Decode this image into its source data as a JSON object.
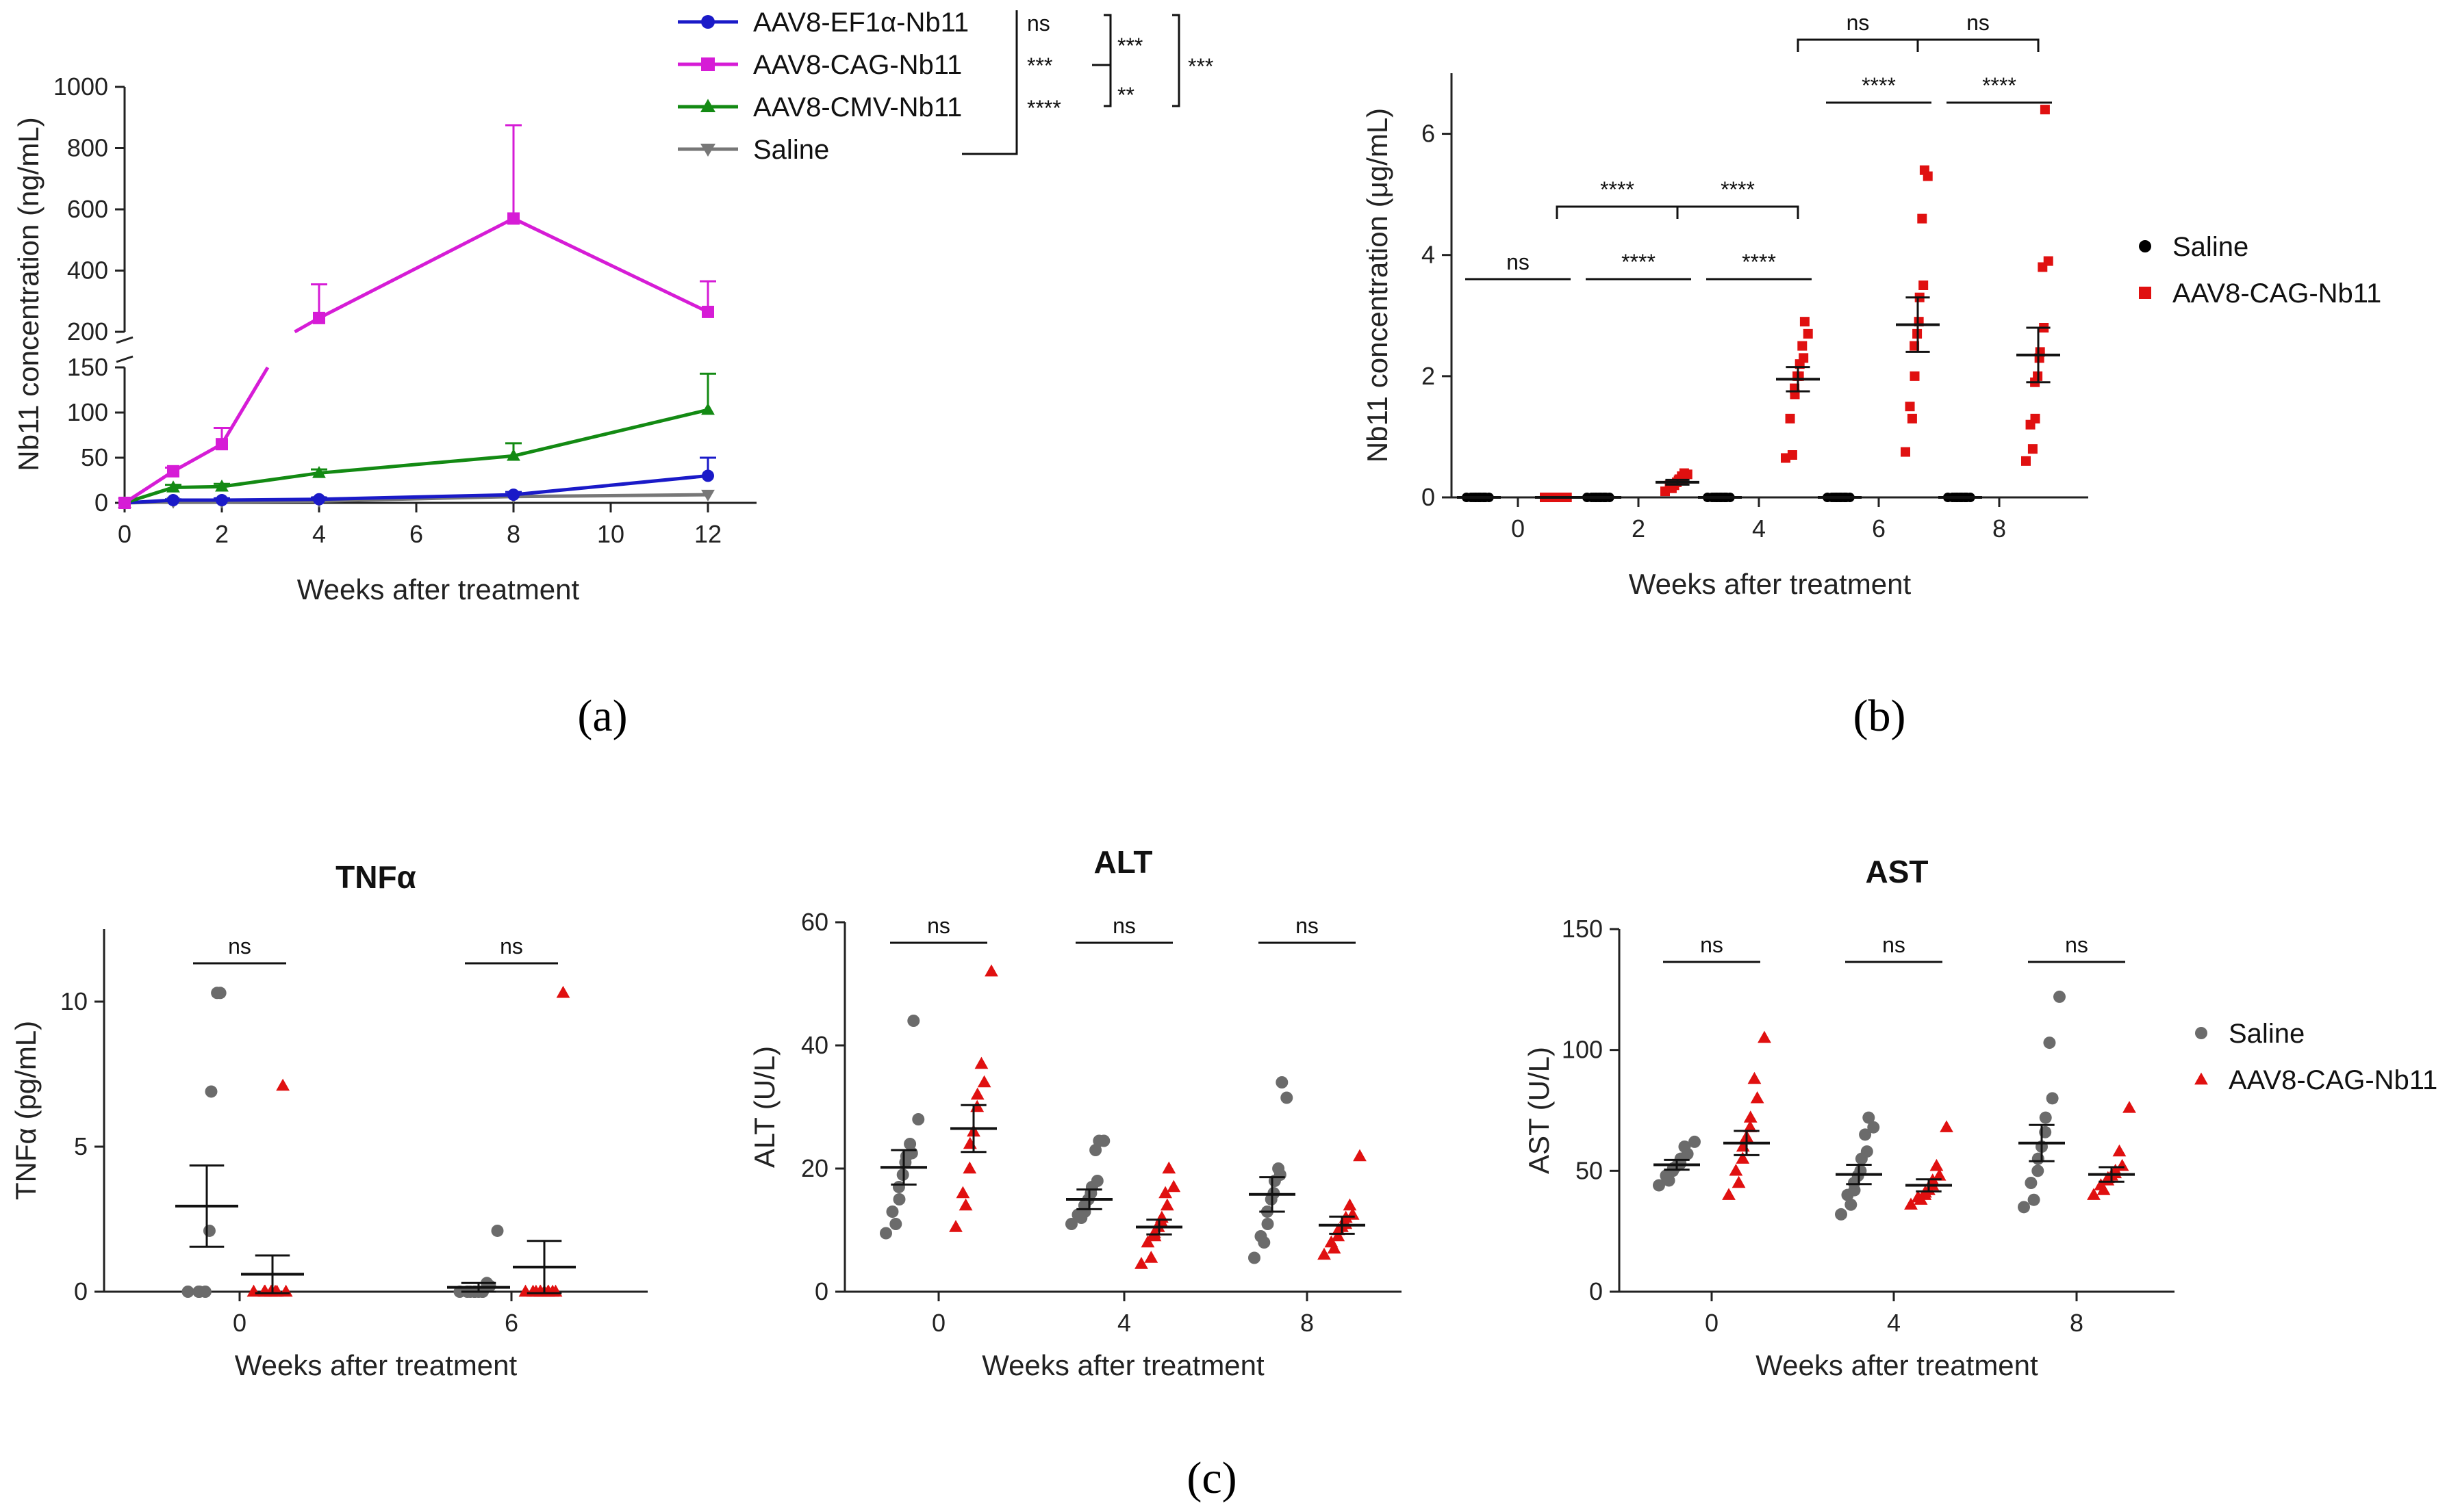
{
  "chart_data": [
    {
      "id": "a",
      "type": "line",
      "panel_label": "(a)",
      "xlabel": "Weeks after treatment",
      "ylabel": "Nb11 concentration (ng/mL)",
      "x_ticks": [
        0,
        2,
        4,
        6,
        8,
        10,
        12
      ],
      "y_ticks_upper": [
        200,
        400,
        600,
        800,
        1000
      ],
      "y_ticks_lower": [
        0,
        50,
        100,
        150
      ],
      "ylim_lower": [
        0,
        150
      ],
      "ylim_upper": [
        200,
        1000
      ],
      "series": [
        {
          "name": "AAV8-EF1α-Nb11",
          "color": "#1a1ac8",
          "marker": "circle",
          "x": [
            0,
            1,
            2,
            4,
            8,
            12
          ],
          "values": [
            0,
            3,
            3,
            4,
            9,
            30
          ],
          "error": [
            0,
            1,
            2,
            2,
            3,
            20
          ]
        },
        {
          "name": "AAV8-CAG-Nb11",
          "color": "#d61cd6",
          "marker": "square",
          "x": [
            0,
            1,
            2,
            4,
            8,
            12
          ],
          "values": [
            0,
            35,
            65,
            245,
            570,
            265
          ],
          "error": [
            0,
            4,
            18,
            110,
            305,
            100
          ]
        },
        {
          "name": "AAV8-CMV-Nb11",
          "color": "#138a13",
          "marker": "triangle",
          "x": [
            0,
            1,
            2,
            4,
            8,
            12
          ],
          "values": [
            0,
            17,
            18,
            33,
            52,
            103
          ],
          "error": [
            0,
            3,
            3,
            4,
            14,
            40
          ]
        },
        {
          "name": "Saline",
          "color": "#777777",
          "marker": "triangle-down",
          "x": [
            0,
            1,
            2,
            4,
            8,
            12
          ],
          "values": [
            0,
            1,
            1,
            2,
            7,
            9
          ],
          "error": [
            0,
            0,
            0,
            0,
            0,
            0
          ]
        }
      ],
      "significance": {
        "vs_saline": [
          "ns",
          "***",
          "****"
        ],
        "pairwise": [
          "***",
          "**",
          "***"
        ]
      }
    },
    {
      "id": "b",
      "type": "scatter",
      "panel_label": "(b)",
      "xlabel": "Weeks after treatment",
      "ylabel": "Nb11 concentration (μg/mL)",
      "x_ticks": [
        0,
        2,
        4,
        6,
        8
      ],
      "y_ticks": [
        0,
        2,
        4,
        6
      ],
      "ylim": [
        0,
        7
      ],
      "legend": [
        {
          "name": "Saline",
          "color": "#000000",
          "marker": "circle"
        },
        {
          "name": "AAV8-CAG-Nb11",
          "color": "#e01010",
          "marker": "square"
        }
      ],
      "groups": [
        {
          "week": 0,
          "series": "Saline",
          "points": [
            0,
            0,
            0,
            0,
            0,
            0,
            0,
            0,
            0,
            0,
            0,
            0
          ],
          "mean": 0,
          "sem": 0
        },
        {
          "week": 0,
          "series": "AAV8-CAG-Nb11",
          "points": [
            0,
            0,
            0,
            0,
            0,
            0,
            0,
            0,
            0,
            0,
            0,
            0
          ],
          "mean": 0,
          "sem": 0
        },
        {
          "week": 2,
          "series": "Saline",
          "points": [
            0,
            0,
            0,
            0,
            0,
            0,
            0,
            0,
            0,
            0,
            0,
            0
          ],
          "mean": 0,
          "sem": 0
        },
        {
          "week": 2,
          "series": "AAV8-CAG-Nb11",
          "points": [
            0.1,
            0.15,
            0.2,
            0.2,
            0.22,
            0.25,
            0.28,
            0.3,
            0.3,
            0.35,
            0.38,
            0.4
          ],
          "mean": 0.25,
          "sem": 0.04
        },
        {
          "week": 4,
          "series": "Saline",
          "points": [
            0,
            0,
            0,
            0,
            0,
            0,
            0,
            0,
            0,
            0,
            0,
            0
          ],
          "mean": 0,
          "sem": 0
        },
        {
          "week": 4,
          "series": "AAV8-CAG-Nb11",
          "points": [
            0.65,
            0.7,
            1.3,
            1.7,
            1.8,
            2.0,
            2.0,
            2.2,
            2.3,
            2.5,
            2.7,
            2.9
          ],
          "mean": 1.95,
          "sem": 0.2
        },
        {
          "week": 6,
          "series": "Saline",
          "points": [
            0,
            0,
            0,
            0,
            0,
            0,
            0,
            0,
            0,
            0,
            0,
            0
          ],
          "mean": 0,
          "sem": 0
        },
        {
          "week": 6,
          "series": "AAV8-CAG-Nb11",
          "points": [
            0.75,
            1.3,
            1.5,
            2.0,
            2.5,
            2.7,
            2.9,
            3.3,
            3.5,
            4.6,
            5.3,
            5.4
          ],
          "mean": 2.85,
          "sem": 0.45
        },
        {
          "week": 8,
          "series": "Saline",
          "points": [
            0,
            0,
            0,
            0,
            0,
            0,
            0,
            0,
            0,
            0,
            0,
            0
          ],
          "mean": 0,
          "sem": 0
        },
        {
          "week": 8,
          "series": "AAV8-CAG-Nb11",
          "points": [
            0.6,
            0.8,
            1.2,
            1.3,
            1.9,
            2.0,
            2.3,
            2.4,
            2.8,
            3.8,
            3.9,
            6.4
          ],
          "mean": 2.35,
          "sem": 0.45
        }
      ],
      "significance": {
        "within_week": [
          "ns",
          "****",
          "****",
          "****",
          "****"
        ],
        "across_weeks": [
          {
            "from": 0,
            "to": 2,
            "label": "****"
          },
          {
            "from": 2,
            "to": 4,
            "label": "****"
          },
          {
            "from": 4,
            "to": 6,
            "label": "ns"
          },
          {
            "from": 6,
            "to": 8,
            "label": "ns"
          }
        ]
      }
    },
    {
      "id": "c1",
      "type": "scatter",
      "title": "TNFα",
      "xlabel": "Weeks after treatment",
      "ylabel": "TNFα (pg/mL)",
      "x_ticks": [
        0,
        6
      ],
      "y_ticks": [
        0,
        5,
        10
      ],
      "ylim": [
        0,
        12.5
      ],
      "groups": [
        {
          "week": 0,
          "series": "Saline",
          "points": [
            0,
            0,
            0,
            0,
            2.1,
            6.9,
            10.3,
            10.3
          ],
          "mean": 2.95,
          "sem": 1.4
        },
        {
          "week": 0,
          "series": "AAV8-CAG-Nb11",
          "points": [
            0,
            0,
            0,
            0,
            0,
            0,
            0,
            7.1
          ],
          "mean": 0.6,
          "sem": 0.65
        },
        {
          "week": 6,
          "series": "Saline",
          "points": [
            0,
            0,
            0,
            0,
            0,
            0,
            0,
            0,
            0.2,
            0.3,
            2.1
          ],
          "mean": 0.15,
          "sem": 0.15
        },
        {
          "week": 6,
          "series": "AAV8-CAG-Nb11",
          "points": [
            0,
            0,
            0,
            0,
            0,
            0,
            0,
            0,
            0,
            0,
            10.3
          ],
          "mean": 0.85,
          "sem": 0.9
        }
      ],
      "significance": [
        "ns",
        "ns"
      ]
    },
    {
      "id": "c2",
      "type": "scatter",
      "title": "ALT",
      "xlabel": "Weeks after treatment",
      "ylabel": "ALT (U/L)",
      "x_ticks": [
        0,
        4,
        8
      ],
      "y_ticks": [
        0,
        20,
        40,
        60
      ],
      "ylim": [
        0,
        60
      ],
      "groups": [
        {
          "week": 0,
          "series": "Saline",
          "points": [
            9.5,
            11,
            13,
            15,
            17,
            19,
            21,
            22,
            22.5,
            24,
            28,
            44
          ],
          "mean": 20.2,
          "sem": 2.8
        },
        {
          "week": 0,
          "series": "AAV8-CAG-Nb11",
          "points": [
            10.5,
            14,
            16,
            20,
            24,
            26,
            30,
            32,
            34,
            37,
            52
          ],
          "mean": 26.5,
          "sem": 3.8
        },
        {
          "week": 4,
          "series": "Saline",
          "points": [
            11,
            12,
            12.5,
            13,
            14,
            15,
            16,
            17,
            18,
            23,
            24.5,
            24.5
          ],
          "mean": 15,
          "sem": 1.6
        },
        {
          "week": 4,
          "series": "AAV8-CAG-Nb11",
          "points": [
            4.5,
            5.5,
            8,
            9,
            9.5,
            10.5,
            11.5,
            12,
            14,
            16,
            17,
            20
          ],
          "mean": 10.5,
          "sem": 1.2
        },
        {
          "week": 8,
          "series": "Saline",
          "points": [
            5.5,
            8,
            9,
            11,
            13,
            15,
            16,
            18,
            19,
            20,
            31.5,
            34
          ],
          "mean": 15.8,
          "sem": 2.8
        },
        {
          "week": 8,
          "series": "AAV8-CAG-Nb11",
          "points": [
            6,
            7,
            8,
            9,
            10,
            10.5,
            11,
            12,
            12.5,
            14,
            22
          ],
          "mean": 10.8,
          "sem": 1.4
        }
      ],
      "significance": [
        "ns",
        "ns",
        "ns"
      ]
    },
    {
      "id": "c3",
      "type": "scatter",
      "title": "AST",
      "xlabel": "Weeks after treatment",
      "ylabel": "AST (U/L)",
      "x_ticks": [
        0,
        4,
        8
      ],
      "y_ticks": [
        0,
        50,
        100,
        150
      ],
      "ylim": [
        0,
        150
      ],
      "legend": [
        {
          "name": "Saline",
          "color": "#6b6b6b",
          "marker": "circle"
        },
        {
          "name": "AAV8-CAG-Nb11",
          "color": "#e01010",
          "marker": "triangle"
        }
      ],
      "groups": [
        {
          "week": 0,
          "series": "Saline",
          "points": [
            44,
            46,
            48,
            50,
            51,
            52,
            53,
            55,
            57,
            60,
            62
          ],
          "mean": 52.5,
          "sem": 2
        },
        {
          "week": 0,
          "series": "AAV8-CAG-Nb11",
          "points": [
            40,
            45,
            50,
            55,
            60,
            64,
            68,
            72,
            80,
            88,
            105
          ],
          "mean": 61.5,
          "sem": 5
        },
        {
          "week": 4,
          "series": "Saline",
          "points": [
            32,
            36,
            40,
            42,
            45,
            48,
            50,
            55,
            58,
            65,
            68,
            72
          ],
          "mean": 48.5,
          "sem": 4
        },
        {
          "week": 4,
          "series": "AAV8-CAG-Nb11",
          "points": [
            36,
            38,
            39,
            40,
            41,
            42,
            44,
            46,
            48,
            52,
            68
          ],
          "mean": 44,
          "sem": 2.5
        },
        {
          "week": 8,
          "series": "Saline",
          "points": [
            35,
            38,
            45,
            50,
            55,
            60,
            66,
            72,
            80,
            103,
            122
          ],
          "mean": 61.5,
          "sem": 7.5
        },
        {
          "week": 8,
          "series": "AAV8-CAG-Nb11",
          "points": [
            40,
            42,
            44,
            46,
            47,
            48,
            49,
            50,
            52,
            58,
            76
          ],
          "mean": 48.5,
          "sem": 3
        }
      ],
      "significance": [
        "ns",
        "ns",
        "ns"
      ]
    }
  ],
  "labels": {
    "panel_a": "(a)",
    "panel_b": "(b)",
    "panel_c": "(c)"
  }
}
